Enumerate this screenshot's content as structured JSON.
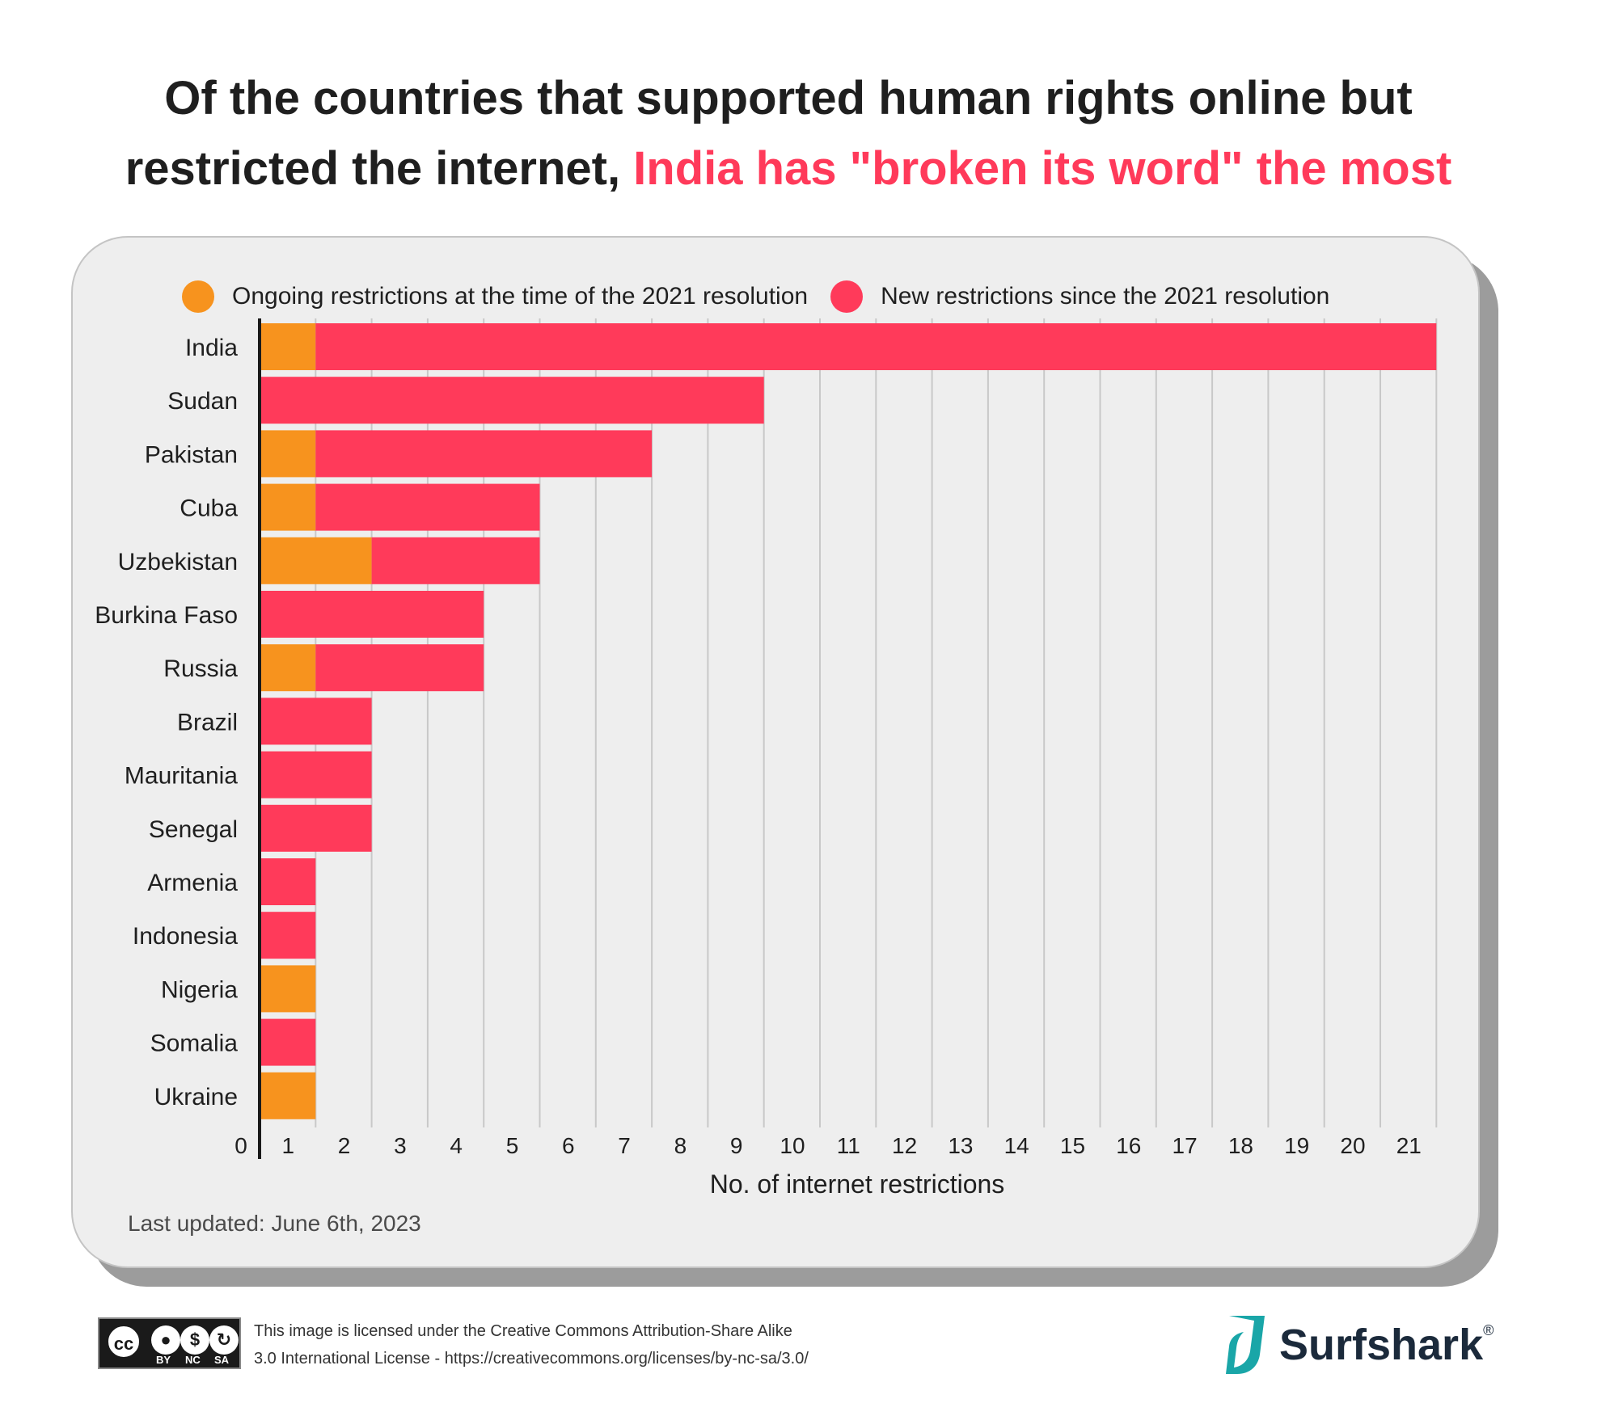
{
  "title": {
    "part1": "Of the countries that supported human rights online but",
    "part2": "restricted the internet, ",
    "highlight": "India has \"broken its word\" the most"
  },
  "colors": {
    "ongoing": "#f7931e",
    "new": "#ff3a5a",
    "title_highlight": "#ff3a5a"
  },
  "chart_data": {
    "type": "bar",
    "orientation": "horizontal",
    "stacked": true,
    "categories": [
      "India",
      "Sudan",
      "Pakistan",
      "Cuba",
      "Uzbekistan",
      "Burkina Faso",
      "Russia",
      "Brazil",
      "Mauritania",
      "Senegal",
      "Armenia",
      "Indonesia",
      "Nigeria",
      "Somalia",
      "Ukraine"
    ],
    "series": [
      {
        "name": "Ongoing restrictions at the time of the 2021 resolution",
        "color": "#f7931e",
        "values": [
          1,
          0,
          1,
          1,
          2,
          0,
          1,
          0,
          0,
          0,
          0,
          0,
          1,
          0,
          1
        ]
      },
      {
        "name": "New restrictions since the 2021 resolution",
        "color": "#ff3a5a",
        "values": [
          20,
          9,
          6,
          4,
          3,
          4,
          3,
          2,
          2,
          2,
          1,
          1,
          0,
          1,
          0
        ]
      }
    ],
    "xlabel": "No. of internet restrictions",
    "ylabel": "",
    "xlim": [
      0,
      21
    ],
    "xticks": [
      "0",
      "1",
      "2",
      "3",
      "4",
      "5",
      "6",
      "7",
      "8",
      "9",
      "10",
      "11",
      "12",
      "13",
      "14",
      "15",
      "16",
      "17",
      "18",
      "19",
      "20",
      "21"
    ],
    "grid": "vertical",
    "legend": "top"
  },
  "footnote": "Last updated: June 6th, 2023",
  "license": {
    "line1": "This image is licensed under the Creative Commons Attribution-Share Alike",
    "line2": "3.0 International License - https://creativecommons.org/licenses/by-nc-sa/3.0/",
    "badge": {
      "cc": "cc",
      "by": "BY",
      "nc": "NC",
      "sa": "SA"
    }
  },
  "brand": {
    "name": "Surfshark",
    "reg": "®"
  }
}
